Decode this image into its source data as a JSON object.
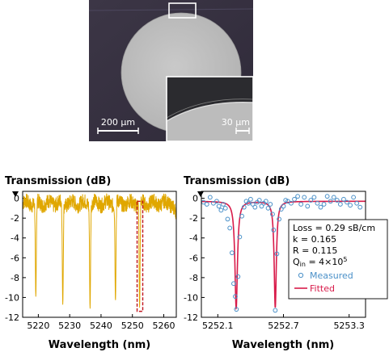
{
  "micrograph": {
    "scale_bar_main": "200 µm",
    "scale_bar_inset": "30 µm"
  },
  "chart_data": [
    {
      "type": "line",
      "ylabel": "Transmission (dB)",
      "xlabel": "Wavelength (nm)",
      "xlim": [
        5215,
        5264
      ],
      "ylim": [
        -12,
        0.7
      ],
      "xticks": [
        5220,
        5230,
        5240,
        5250,
        5260
      ],
      "yticks": [
        0,
        -2,
        -4,
        -6,
        -8,
        -10,
        -12
      ],
      "line_color": "#e0a700",
      "baseline_db": -0.5,
      "dips": [
        {
          "x": 5219.2,
          "depth_db": -9.9
        },
        {
          "x": 5227.8,
          "depth_db": -10.7
        },
        {
          "x": 5236.5,
          "depth_db": -11.1
        },
        {
          "x": 5244.6,
          "depth_db": -10.3
        },
        {
          "x": 5252.3,
          "depth_db": -11.0
        }
      ],
      "highlight_range": [
        5251.5,
        5253.3
      ],
      "highlight_color": "#c0141c"
    },
    {
      "type": "scatter",
      "ylabel": "Transmission (dB)",
      "xlabel": "Wavelength (nm)",
      "xlim": [
        5251.95,
        5253.45
      ],
      "ylim": [
        -12,
        0.7
      ],
      "xticks": [
        "5252.1",
        "5252.7",
        "5253.3"
      ],
      "yticks": [
        0,
        -2,
        -4,
        -6,
        -8,
        -10,
        -12
      ],
      "series": [
        {
          "name": "Measured",
          "color": "#4a90c8",
          "x": [
            5251.97,
            5252.0,
            5252.03,
            5252.06,
            5252.09,
            5252.11,
            5252.13,
            5252.15,
            5252.17,
            5252.19,
            5252.21,
            5252.23,
            5252.245,
            5252.26,
            5252.27,
            5252.285,
            5252.3,
            5252.32,
            5252.34,
            5252.36,
            5252.38,
            5252.4,
            5252.42,
            5252.44,
            5252.46,
            5252.48,
            5252.5,
            5252.52,
            5252.54,
            5252.56,
            5252.58,
            5252.6,
            5252.61,
            5252.625,
            5252.64,
            5252.66,
            5252.68,
            5252.7,
            5252.72,
            5252.74,
            5252.77,
            5252.8,
            5252.83,
            5252.86,
            5252.89,
            5252.92,
            5252.95,
            5252.98,
            5253.01,
            5253.04,
            5253.07,
            5253.1,
            5253.13,
            5253.16,
            5253.19,
            5253.22,
            5253.25,
            5253.28,
            5253.31,
            5253.34,
            5253.37,
            5253.4
          ],
          "y": [
            -0.4,
            -0.6,
            0.1,
            -0.5,
            -0.3,
            -0.8,
            -1.2,
            -0.6,
            -1.0,
            -2.1,
            -3.0,
            -5.5,
            -8.6,
            -9.9,
            -11.2,
            -7.9,
            -3.9,
            -1.8,
            -0.9,
            -0.3,
            -0.5,
            -0.1,
            -0.6,
            -0.9,
            -0.4,
            -0.2,
            -0.8,
            -0.5,
            -0.3,
            -1.0,
            -0.6,
            -1.6,
            -3.2,
            -11.3,
            -5.6,
            -2.1,
            -1.1,
            -0.8,
            -0.2,
            -0.3,
            -0.5,
            -0.1,
            0.2,
            -0.6,
            0.1,
            -0.8,
            -0.2,
            0.1,
            -0.5,
            -0.9,
            -0.6,
            0.2,
            -0.3,
            0.1,
            -0.2,
            -0.6,
            -0.1,
            -0.4,
            -0.7,
            0.1,
            -0.5,
            -0.9
          ]
        },
        {
          "name": "Fitted",
          "color": "#d81b4a",
          "baseline_db": -0.3,
          "dips": [
            {
              "x": 5252.268,
              "depth_db": -11.1,
              "width_nm": 0.014
            },
            {
              "x": 5252.625,
              "depth_db": -11.0,
              "width_nm": 0.012
            }
          ]
        }
      ],
      "legend": {
        "loss": "Loss = 0.29 sB/cm",
        "k": "k = 0.165",
        "r": "R = 0.115",
        "q_prefix": "Q",
        "q_sub": "in",
        "q_mid": " = 4×10",
        "q_sup": "5",
        "measured_label": "Measured",
        "fitted_label": "Fitted"
      }
    }
  ]
}
